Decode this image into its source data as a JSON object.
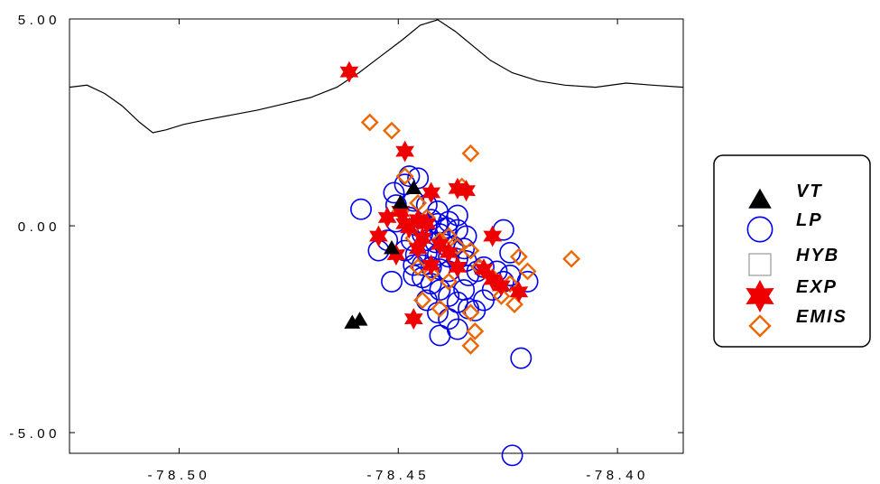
{
  "chart_data": {
    "type": "scatter",
    "title": "",
    "xlabel": "",
    "ylabel": "",
    "xlim": [
      -78.525,
      -78.385
    ],
    "ylim": [
      -5.5,
      5.0
    ],
    "x_ticks": [
      -78.5,
      -78.45,
      -78.4
    ],
    "x_tick_labels": [
      "-78.50",
      "-78.45",
      "-78.40"
    ],
    "y_ticks": [
      5.0,
      0.0,
      -5.0
    ],
    "y_tick_labels": [
      "5.00",
      "0.00",
      "-5.00"
    ],
    "grid": false,
    "legend_position": "right",
    "colors": {
      "VT": "#000000",
      "LP": "#0000ee",
      "HYB": "#999999",
      "EXP": "#ee0000",
      "EMIS": "#ee6600",
      "topography": "#000000"
    },
    "topography_line": [
      [
        -78.525,
        3.35
      ],
      [
        -78.521,
        3.4
      ],
      [
        -78.517,
        3.2
      ],
      [
        -78.513,
        2.9
      ],
      [
        -78.509,
        2.5
      ],
      [
        -78.506,
        2.25
      ],
      [
        -78.503,
        2.32
      ],
      [
        -78.499,
        2.45
      ],
      [
        -78.494,
        2.56
      ],
      [
        -78.488,
        2.68
      ],
      [
        -78.482,
        2.8
      ],
      [
        -78.476,
        2.95
      ],
      [
        -78.47,
        3.1
      ],
      [
        -78.464,
        3.35
      ],
      [
        -78.459,
        3.7
      ],
      [
        -78.454,
        4.1
      ],
      [
        -78.449,
        4.5
      ],
      [
        -78.445,
        4.85
      ],
      [
        -78.441,
        4.98
      ],
      [
        -78.437,
        4.7
      ],
      [
        -78.433,
        4.35
      ],
      [
        -78.429,
        4.0
      ],
      [
        -78.424,
        3.7
      ],
      [
        -78.418,
        3.5
      ],
      [
        -78.412,
        3.4
      ],
      [
        -78.405,
        3.35
      ],
      [
        -78.398,
        3.45
      ],
      [
        -78.392,
        3.4
      ],
      [
        -78.385,
        3.35
      ]
    ],
    "series": [
      {
        "name": "VT",
        "marker": "triangle",
        "points": [
          [
            -78.4465,
            0.9
          ],
          [
            -78.4495,
            0.55
          ],
          [
            -78.4515,
            -0.55
          ],
          [
            -78.4588,
            -2.28
          ],
          [
            -78.4605,
            -2.35
          ]
        ]
      },
      {
        "name": "LP",
        "marker": "circle",
        "points": [
          [
            -78.4475,
            1.2
          ],
          [
            -78.4455,
            1.15
          ],
          [
            -78.4485,
            1.0
          ],
          [
            -78.451,
            0.8
          ],
          [
            -78.4465,
            0.6
          ],
          [
            -78.4435,
            0.5
          ],
          [
            -78.441,
            0.35
          ],
          [
            -78.4475,
            0.2
          ],
          [
            -78.4505,
            0.1
          ],
          [
            -78.4455,
            0.0
          ],
          [
            -78.4435,
            0.0
          ],
          [
            -78.441,
            0.05
          ],
          [
            -78.439,
            -0.05
          ],
          [
            -78.4365,
            -0.1
          ],
          [
            -78.447,
            -0.35
          ],
          [
            -78.4435,
            -0.35
          ],
          [
            -78.4415,
            -0.4
          ],
          [
            -78.4395,
            -0.45
          ],
          [
            -78.4375,
            -0.5
          ],
          [
            -78.446,
            -0.7
          ],
          [
            -78.4435,
            -0.65
          ],
          [
            -78.441,
            -0.7
          ],
          [
            -78.4385,
            -0.75
          ],
          [
            -78.4365,
            -0.8
          ],
          [
            -78.4345,
            -0.85
          ],
          [
            -78.4445,
            -0.95
          ],
          [
            -78.4425,
            -1.0
          ],
          [
            -78.4405,
            -1.05
          ],
          [
            -78.4385,
            -1.1
          ],
          [
            -78.434,
            -1.2
          ],
          [
            -78.432,
            -1.1
          ],
          [
            -78.4445,
            -1.25
          ],
          [
            -78.4425,
            -1.4
          ],
          [
            -78.4405,
            -1.55
          ],
          [
            -78.4385,
            -1.7
          ],
          [
            -78.4365,
            -1.85
          ],
          [
            -78.434,
            -2.0
          ],
          [
            -78.4435,
            -1.8
          ],
          [
            -78.441,
            -2.1
          ],
          [
            -78.4385,
            -2.25
          ],
          [
            -78.4365,
            -2.5
          ],
          [
            -78.4405,
            -2.65
          ],
          [
            -78.4325,
            -2.05
          ],
          [
            -78.4305,
            -1.8
          ],
          [
            -78.4285,
            -1.55
          ],
          [
            -78.426,
            -1.35
          ],
          [
            -78.4245,
            -1.2
          ],
          [
            -78.4275,
            -1.1
          ],
          [
            -78.4245,
            -0.65
          ],
          [
            -78.426,
            -0.1
          ],
          [
            -78.4205,
            -1.35
          ],
          [
            -78.422,
            -3.2
          ],
          [
            -78.424,
            -5.55
          ],
          [
            -78.4585,
            0.4
          ],
          [
            -78.4525,
            -0.35
          ],
          [
            -78.4445,
            -0.2
          ],
          [
            -78.4365,
            0.25
          ],
          [
            -78.4345,
            -0.25
          ],
          [
            -78.4485,
            -0.6
          ],
          [
            -78.4515,
            -1.35
          ],
          [
            -78.4465,
            -1.2
          ],
          [
            -78.4405,
            -0.2
          ],
          [
            -78.4425,
            0.15
          ],
          [
            -78.4385,
            0.1
          ],
          [
            -78.435,
            -0.55
          ],
          [
            -78.4505,
            0.5
          ],
          [
            -78.4545,
            -0.6
          ],
          [
            -78.4465,
            -0.95
          ],
          [
            -78.4305,
            -1.0
          ],
          [
            -78.435,
            -1.55
          ]
        ]
      },
      {
        "name": "HYB",
        "marker": "square",
        "points": []
      },
      {
        "name": "EXP",
        "marker": "star",
        "points": [
          [
            -78.4612,
            3.72
          ],
          [
            -78.4485,
            1.8
          ],
          [
            -78.4365,
            0.9
          ],
          [
            -78.4425,
            0.8
          ],
          [
            -78.4345,
            0.85
          ],
          [
            -78.4495,
            0.35
          ],
          [
            -78.4525,
            0.2
          ],
          [
            -78.4455,
            0.15
          ],
          [
            -78.4435,
            0.05
          ],
          [
            -78.4475,
            -0.05
          ],
          [
            -78.4545,
            -0.25
          ],
          [
            -78.4405,
            -0.45
          ],
          [
            -78.4455,
            -0.55
          ],
          [
            -78.4425,
            -0.95
          ],
          [
            -78.4385,
            -0.65
          ],
          [
            -78.4505,
            -0.7
          ],
          [
            -78.4365,
            -1.0
          ],
          [
            -78.4305,
            -1.05
          ],
          [
            -78.4285,
            -1.3
          ],
          [
            -78.4265,
            -1.45
          ],
          [
            -78.4225,
            -1.6
          ],
          [
            -78.4285,
            -0.25
          ],
          [
            -78.4465,
            -2.25
          ],
          [
            -78.4485,
            0.05
          ],
          [
            -78.4445,
            -0.3
          ]
        ]
      },
      {
        "name": "EMIS",
        "marker": "diamond",
        "points": [
          [
            -78.4565,
            2.5
          ],
          [
            -78.4515,
            2.3
          ],
          [
            -78.4335,
            1.75
          ],
          [
            -78.4485,
            1.2
          ],
          [
            -78.4355,
            0.95
          ],
          [
            -78.4495,
            0.35
          ],
          [
            -78.4455,
            0.55
          ],
          [
            -78.4435,
            0.2
          ],
          [
            -78.4465,
            -0.3
          ],
          [
            -78.4405,
            -0.35
          ],
          [
            -78.4385,
            -0.25
          ],
          [
            -78.4335,
            -0.6
          ],
          [
            -78.4455,
            -1.0
          ],
          [
            -78.4315,
            -1.0
          ],
          [
            -78.4285,
            -1.25
          ],
          [
            -78.4245,
            -1.4
          ],
          [
            -78.4225,
            -0.75
          ],
          [
            -78.4205,
            -1.1
          ],
          [
            -78.4235,
            -1.9
          ],
          [
            -78.4265,
            -1.7
          ],
          [
            -78.4335,
            -2.1
          ],
          [
            -78.4325,
            -2.55
          ],
          [
            -78.4335,
            -2.9
          ],
          [
            -78.4405,
            -2.0
          ],
          [
            -78.4445,
            -1.8
          ],
          [
            -78.4105,
            -0.8
          ],
          [
            -78.4365,
            -0.5
          ],
          [
            -78.4425,
            -1.15
          ],
          [
            -78.4385,
            -1.35
          ],
          [
            -78.4465,
            0.0
          ]
        ]
      }
    ]
  }
}
